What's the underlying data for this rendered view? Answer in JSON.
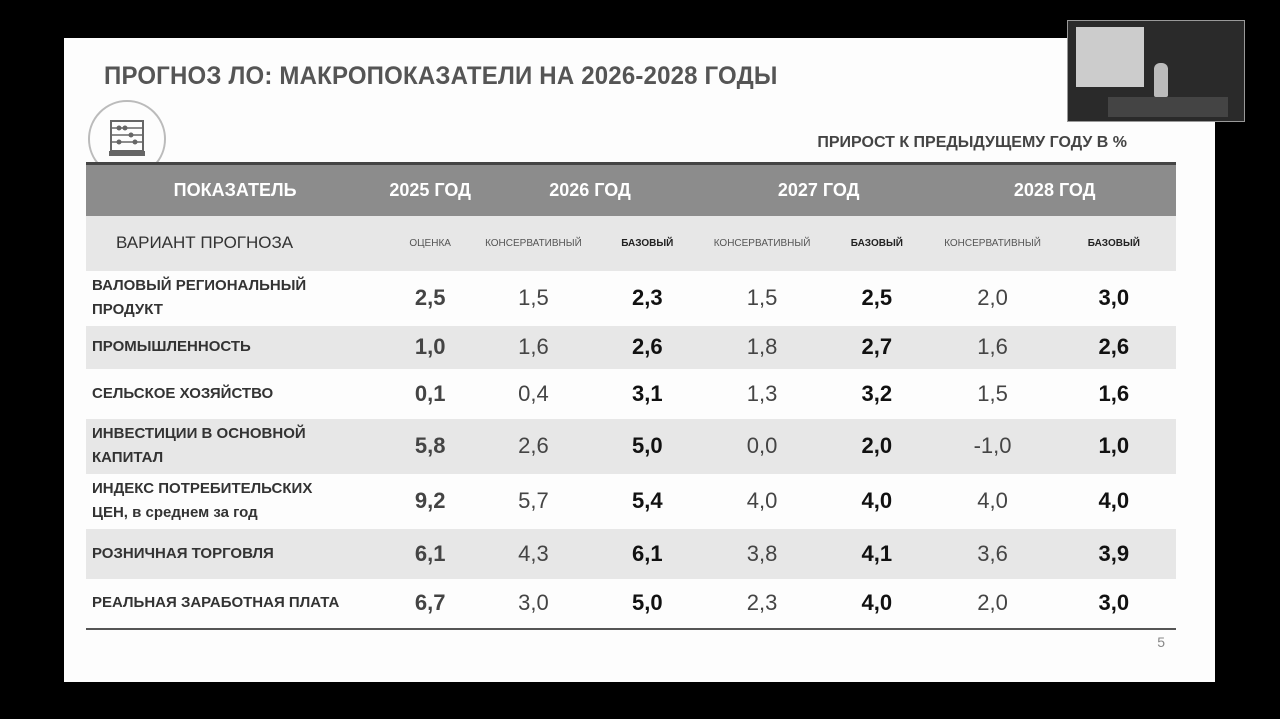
{
  "slide": {
    "title": "ПРОГНОЗ ЛО: МАКРОПОКАЗАТЕЛИ НА 2026-2028 ГОДЫ",
    "icon": "abacus-icon",
    "unit_note": "ПРИРОСТ К ПРЕДЫДУЩЕМУ ГОДУ В %",
    "page_number": "5",
    "table": {
      "header": {
        "indicator": "ПОКАЗАТЕЛЬ",
        "y2025": "2025 ГОД",
        "y2026": "2026 ГОД",
        "y2027": "2027 ГОД",
        "y2028": "2028 ГОД"
      },
      "variants": {
        "label": "ВАРИАНТ ПРОГНОЗА",
        "estimate": "ОЦЕНКА",
        "conservative": "КОНСЕРВАТИВНЫЙ",
        "base": "БАЗОВЫЙ"
      },
      "rows": [
        {
          "label": "ВАЛОВЫЙ РЕГИОНАЛЬНЫЙ ПРОДУКТ",
          "values": [
            "2,5",
            "1,5",
            "2,3",
            "1,5",
            "2,5",
            "2,0",
            "3,0"
          ]
        },
        {
          "label": "ПРОМЫШЛЕННОСТЬ",
          "values": [
            "1,0",
            "1,6",
            "2,6",
            "1,8",
            "2,7",
            "1,6",
            "2,6"
          ]
        },
        {
          "label": "СЕЛЬСКОЕ ХОЗЯЙСТВО",
          "values": [
            "0,1",
            "0,4",
            "3,1",
            "1,3",
            "3,2",
            "1,5",
            "1,6"
          ]
        },
        {
          "label": "ИНВЕСТИЦИИ В ОСНОВНОЙ КАПИТАЛ",
          "values": [
            "5,8",
            "2,6",
            "5,0",
            "0,0",
            "2,0",
            "-1,0",
            "1,0"
          ]
        },
        {
          "label": "ИНДЕКС ПОТРЕБИТЕЛЬСКИХ ЦЕН, в среднем за год",
          "values": [
            "9,2",
            "5,7",
            "5,4",
            "4,0",
            "4,0",
            "4,0",
            "4,0"
          ]
        },
        {
          "label": "РОЗНИЧНАЯ ТОРГОВЛЯ",
          "values": [
            "6,1",
            "4,3",
            "6,1",
            "3,8",
            "4,1",
            "3,6",
            "3,9"
          ]
        },
        {
          "label": "РЕАЛЬНАЯ ЗАРАБОТНАЯ ПЛАТА",
          "values": [
            "6,7",
            "3,0",
            "5,0",
            "2,3",
            "4,0",
            "2,0",
            "3,0"
          ]
        }
      ]
    }
  },
  "video_thumbnail": {
    "icon": "speaker-video-icon"
  }
}
